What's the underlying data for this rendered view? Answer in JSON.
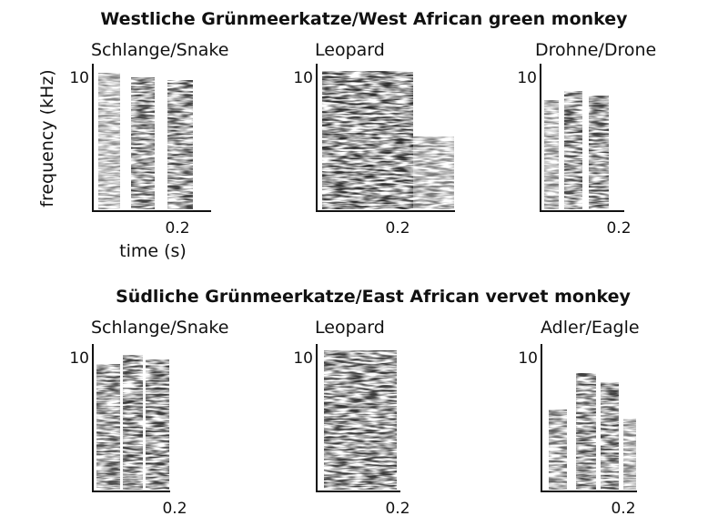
{
  "axis_labels": {
    "y": "frequency (kHz)",
    "x": "time (s)"
  },
  "rows": [
    {
      "title": "Westliche Grünmeerkatze/West African green monkey",
      "panels": [
        {
          "label": "Schlange/Snake",
          "ytick": "10",
          "xtick": "0.2"
        },
        {
          "label": "Leopard",
          "ytick": "10",
          "xtick": "0.2"
        },
        {
          "label": "Drohne/Drone",
          "ytick": "10",
          "xtick": "0.2"
        }
      ]
    },
    {
      "title": "Südliche Grünmeerkatze/East African vervet monkey",
      "panels": [
        {
          "label": "Schlange/Snake",
          "ytick": "10",
          "xtick": "0.2"
        },
        {
          "label": "Leopard",
          "ytick": "10",
          "xtick": "0.2"
        },
        {
          "label": "Adler/Eagle",
          "ytick": "10",
          "xtick": "0.2"
        }
      ]
    }
  ]
}
